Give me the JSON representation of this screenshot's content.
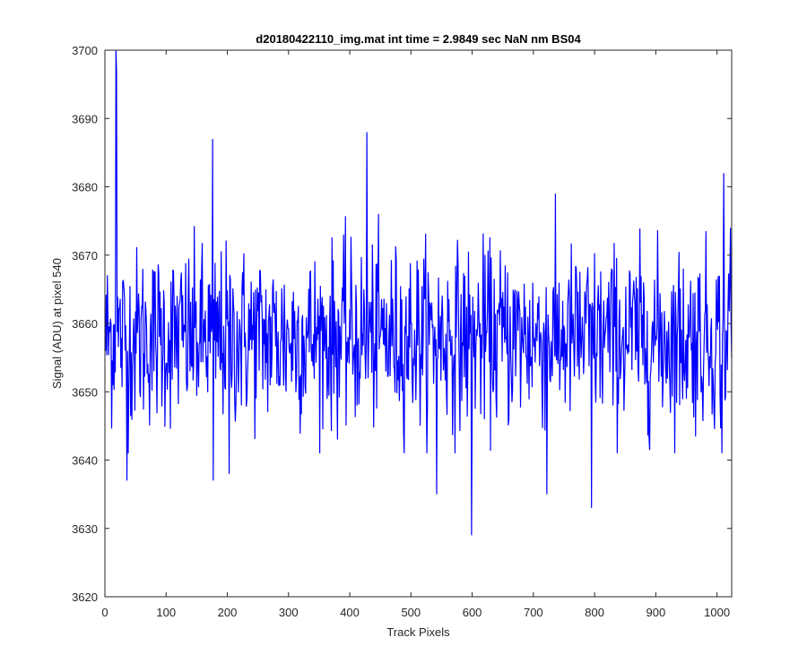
{
  "chart_data": {
    "type": "line",
    "title": "d20180422110_img.mat int time = 2.9849 sec  NaN nm BS04",
    "xlabel": "Track Pixels",
    "ylabel": "Signal (ADU) at pixel 540",
    "xlim": [
      0,
      1024
    ],
    "ylim": [
      3620,
      3700
    ],
    "xticks": [
      0,
      100,
      200,
      300,
      400,
      500,
      600,
      700,
      800,
      900,
      1000
    ],
    "yticks": [
      3620,
      3630,
      3640,
      3650,
      3660,
      3670,
      3680,
      3690,
      3700
    ],
    "grid": false,
    "legend": "none",
    "series": [
      {
        "color": "#0000ff",
        "noise_model": {
          "mean": 3658,
          "n_points": 1024
        },
        "notable_points": [
          {
            "x": 17,
            "y": 3700
          },
          {
            "x": 18,
            "y": 3697
          },
          {
            "x": 35,
            "y": 3637
          },
          {
            "x": 175,
            "y": 3687
          },
          {
            "x": 176,
            "y": 3637
          },
          {
            "x": 202,
            "y": 3638
          },
          {
            "x": 427,
            "y": 3688
          },
          {
            "x": 541,
            "y": 3635
          },
          {
            "x": 598,
            "y": 3629
          },
          {
            "x": 721,
            "y": 3635
          },
          {
            "x": 794,
            "y": 3633
          },
          {
            "x": 1007,
            "y": 3641
          },
          {
            "x": 1010,
            "y": 3682
          },
          {
            "x": 1021,
            "y": 3674
          }
        ]
      }
    ]
  }
}
